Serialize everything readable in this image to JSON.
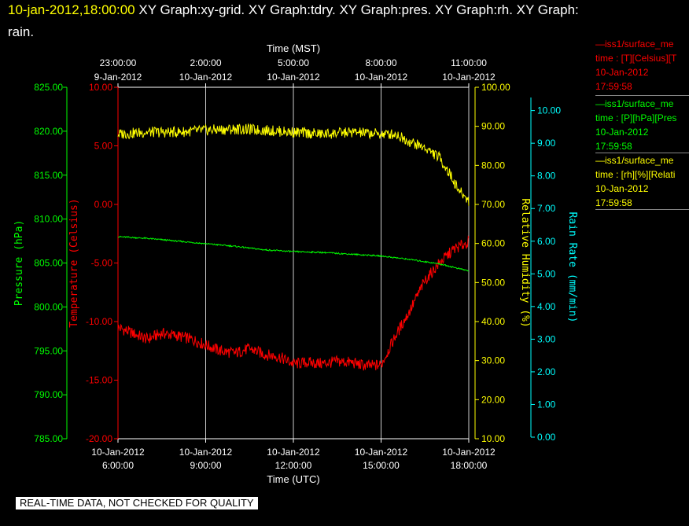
{
  "header": {
    "timestamp": "10-jan-2012,18:00:00",
    "line1_rest": "  XY Graph:xy-grid.  XY Graph:tdry.  XY Graph:pres.  XY Graph:rh.  XY Graph:",
    "line2": "rain."
  },
  "legend": [
    {
      "line1": "—iss1/surface_me",
      "line2": "time : [T][Celsius][T",
      "line3": "10-Jan-2012",
      "line4": "17:59:58",
      "color": "#ff0000"
    },
    {
      "line1": "—iss1/surface_me",
      "line2": "time : [P][hPa][Pres",
      "line3": "10-Jan-2012",
      "line4": "17:59:58",
      "color": "#00ff00"
    },
    {
      "line1": "—iss1/surface_me",
      "line2": "time : [rh][%][Relati",
      "line3": "10-Jan-2012",
      "line4": "17:59:58",
      "color": "#ffff00"
    }
  ],
  "quality_note": "REAL-TIME DATA, NOT CHECKED FOR QUALITY",
  "chart_data": {
    "type": "line",
    "grid": true,
    "x_top": {
      "title": "Time (MST)",
      "ticks": [
        {
          "t": 0,
          "time": "23:00:00",
          "date": "9-Jan-2012"
        },
        {
          "t": 3,
          "time": "2:00:00",
          "date": "10-Jan-2012"
        },
        {
          "t": 6,
          "time": "5:00:00",
          "date": "10-Jan-2012"
        },
        {
          "t": 9,
          "time": "8:00:00",
          "date": "10-Jan-2012"
        },
        {
          "t": 12,
          "time": "11:00:00",
          "date": "10-Jan-2012"
        }
      ]
    },
    "x_bottom": {
      "title": "Time (UTC)",
      "range": [
        "10-Jan-2012 6:00:00",
        "10-Jan-2012 18:00:00"
      ],
      "ticks": [
        {
          "t": 0,
          "date": "10-Jan-2012",
          "time": "6:00:00"
        },
        {
          "t": 3,
          "date": "10-Jan-2012",
          "time": "9:00:00"
        },
        {
          "t": 6,
          "date": "10-Jan-2012",
          "time": "12:00:00"
        },
        {
          "t": 9,
          "date": "10-Jan-2012",
          "time": "15:00:00"
        },
        {
          "t": 12,
          "date": "10-Jan-2012",
          "time": "18:00:00"
        }
      ]
    },
    "axes": {
      "pressure": {
        "label": "Pressure (hPa)",
        "color": "#00ff00",
        "range": [
          785,
          825
        ],
        "ticks": [
          "785.00",
          "790.00",
          "795.00",
          "800.00",
          "805.00",
          "810.00",
          "815.00",
          "820.00",
          "825.00"
        ]
      },
      "temperature": {
        "label": "Temperature (Celsius)",
        "color": "#ff0000",
        "range": [
          -20,
          10
        ],
        "ticks": [
          "-20.00",
          "-15.00",
          "-10.00",
          "-5.00",
          "0.00",
          "5.00",
          "10.00"
        ]
      },
      "rh": {
        "label": "Relative Humidity (%)",
        "color": "#ffff00",
        "range": [
          10,
          100
        ],
        "ticks": [
          "10.00",
          "20.00",
          "30.00",
          "40.00",
          "50.00",
          "60.00",
          "70.00",
          "80.00",
          "90.00",
          "100.00"
        ]
      },
      "rain": {
        "label": "Rain Rate (mm/min)",
        "color": "#00ffff",
        "range": [
          0,
          10.4
        ],
        "ticks": [
          "0.00",
          "1.00",
          "2.00",
          "3.00",
          "4.00",
          "5.00",
          "6.00",
          "7.00",
          "8.00",
          "9.00",
          "10.00"
        ]
      }
    },
    "series": [
      {
        "axis": "temperature",
        "color": "#ff0000",
        "x": [
          "06:00",
          "06:30",
          "07:00",
          "07:30",
          "08:00",
          "08:30",
          "09:00",
          "09:30",
          "10:00",
          "10:30",
          "11:00",
          "11:30",
          "12:00",
          "12:30",
          "13:00",
          "13:30",
          "14:00",
          "14:30",
          "15:00",
          "15:30",
          "16:00",
          "16:30",
          "17:00",
          "17:30",
          "18:00"
        ],
        "y": [
          -10.5,
          -11.0,
          -11.5,
          -11.0,
          -11.2,
          -11.5,
          -12.0,
          -12.5,
          -12.7,
          -12.3,
          -12.8,
          -13.0,
          -13.6,
          -13.5,
          -13.6,
          -13.4,
          -13.5,
          -13.8,
          -13.7,
          -11.2,
          -9.0,
          -6.5,
          -5.0,
          -3.8,
          -3.2
        ]
      },
      {
        "axis": "pressure",
        "color": "#00ff00",
        "x": [
          "06:00",
          "07:00",
          "08:00",
          "09:00",
          "10:00",
          "11:00",
          "12:00",
          "13:00",
          "14:00",
          "15:00",
          "16:00",
          "17:00",
          "17:30",
          "18:00"
        ],
        "y": [
          808.0,
          807.8,
          807.5,
          807.2,
          806.9,
          806.5,
          806.3,
          806.2,
          806.0,
          805.8,
          805.4,
          804.9,
          804.5,
          804.1
        ]
      },
      {
        "axis": "rh",
        "color": "#ffff00",
        "x": [
          "06:00",
          "07:00",
          "08:00",
          "09:00",
          "10:00",
          "11:00",
          "12:00",
          "13:00",
          "14:00",
          "15:00",
          "15:30",
          "16:00",
          "16:30",
          "17:00",
          "17:20",
          "17:40",
          "18:00"
        ],
        "y": [
          88.0,
          88.5,
          88.5,
          89.0,
          89.3,
          89.0,
          88.5,
          88.0,
          88.5,
          88.0,
          88.0,
          86.0,
          84.5,
          82.0,
          78.0,
          73.5,
          71.0
        ]
      }
    ]
  }
}
